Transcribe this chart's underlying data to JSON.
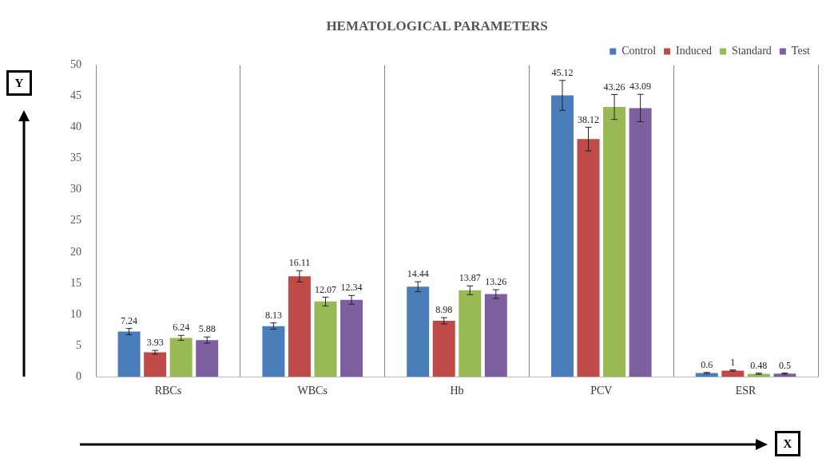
{
  "chart_data": {
    "type": "bar",
    "title": "HEMATOLOGICAL PARAMETERS",
    "xlabel": "X",
    "ylabel": "Y",
    "categories": [
      "RBCs",
      "WBCs",
      "Hb",
      "PCV",
      "ESR"
    ],
    "series": [
      {
        "name": "Control",
        "color": "#4a7ebb",
        "values": [
          7.24,
          8.13,
          14.44,
          45.12,
          0.6
        ],
        "errors": [
          0.5,
          0.5,
          0.8,
          2.4,
          0.1
        ]
      },
      {
        "name": "Induced",
        "color": "#be4b48",
        "values": [
          3.93,
          16.11,
          8.98,
          38.12,
          1
        ],
        "errors": [
          0.3,
          0.9,
          0.5,
          1.9,
          0.1
        ]
      },
      {
        "name": "Standard",
        "color": "#98b954",
        "values": [
          6.24,
          12.07,
          13.87,
          43.26,
          0.48
        ],
        "errors": [
          0.4,
          0.7,
          0.7,
          2.0,
          0.1
        ]
      },
      {
        "name": "Test",
        "color": "#7d60a0",
        "values": [
          5.88,
          12.34,
          13.26,
          43.09,
          0.5
        ],
        "errors": [
          0.5,
          0.7,
          0.7,
          2.2,
          0.1
        ]
      }
    ],
    "ylim": [
      0,
      50
    ],
    "yticks": [
      0,
      5,
      10,
      15,
      20,
      25,
      30,
      35,
      40,
      45,
      50
    ],
    "grid": "x",
    "legend": "top right",
    "data_labels": true
  }
}
